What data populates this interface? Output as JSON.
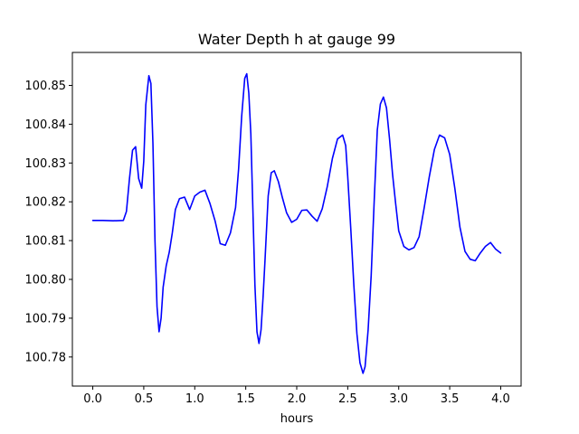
{
  "chart_data": {
    "type": "line",
    "title": "Water Depth h at gauge 99",
    "xlabel": "hours",
    "ylabel": "",
    "xlim": [
      -0.2,
      4.2
    ],
    "ylim": [
      100.7725,
      100.8585
    ],
    "xticks": [
      0.0,
      0.5,
      1.0,
      1.5,
      2.0,
      2.5,
      3.0,
      3.5,
      4.0
    ],
    "xtick_labels": [
      "0.0",
      "0.5",
      "1.0",
      "1.5",
      "2.0",
      "2.5",
      "3.0",
      "3.5",
      "4.0"
    ],
    "yticks": [
      100.78,
      100.79,
      100.8,
      100.81,
      100.82,
      100.83,
      100.84,
      100.85
    ],
    "ytick_labels": [
      "100.78",
      "100.79",
      "100.80",
      "100.81",
      "100.82",
      "100.83",
      "100.84",
      "100.85"
    ],
    "grid": false,
    "legend": false,
    "series": [
      {
        "color": "#0000ff",
        "x": [
          0.0,
          0.1,
          0.2,
          0.3,
          0.33,
          0.36,
          0.39,
          0.42,
          0.45,
          0.48,
          0.5,
          0.52,
          0.55,
          0.57,
          0.59,
          0.61,
          0.63,
          0.65,
          0.67,
          0.69,
          0.72,
          0.75,
          0.78,
          0.81,
          0.85,
          0.9,
          0.95,
          1.0,
          1.05,
          1.1,
          1.15,
          1.2,
          1.25,
          1.3,
          1.35,
          1.4,
          1.43,
          1.46,
          1.49,
          1.51,
          1.53,
          1.55,
          1.57,
          1.59,
          1.61,
          1.63,
          1.65,
          1.67,
          1.69,
          1.72,
          1.75,
          1.78,
          1.82,
          1.86,
          1.9,
          1.95,
          2.0,
          2.05,
          2.1,
          2.15,
          2.2,
          2.25,
          2.3,
          2.35,
          2.4,
          2.45,
          2.48,
          2.5,
          2.53,
          2.56,
          2.59,
          2.62,
          2.65,
          2.67,
          2.7,
          2.73,
          2.76,
          2.79,
          2.82,
          2.85,
          2.88,
          2.91,
          2.94,
          2.97,
          3.0,
          3.05,
          3.1,
          3.15,
          3.2,
          3.25,
          3.3,
          3.35,
          3.4,
          3.45,
          3.5,
          3.55,
          3.6,
          3.65,
          3.7,
          3.75,
          3.8,
          3.85,
          3.9,
          3.95,
          4.0
        ],
        "y": [
          100.8152,
          100.8152,
          100.8151,
          100.8152,
          100.8175,
          100.826,
          100.8333,
          100.8342,
          100.826,
          100.8235,
          100.8305,
          100.845,
          100.8525,
          100.8505,
          100.835,
          100.81,
          100.793,
          100.7865,
          100.79,
          100.798,
          100.8035,
          100.807,
          100.812,
          100.818,
          100.8208,
          100.8212,
          100.818,
          100.8215,
          100.8225,
          100.823,
          100.8195,
          100.815,
          100.8092,
          100.8088,
          100.812,
          100.8185,
          100.8285,
          100.842,
          100.8518,
          100.853,
          100.848,
          100.8375,
          100.818,
          100.7985,
          100.7865,
          100.7835,
          100.787,
          100.7955,
          100.8055,
          100.8215,
          100.8275,
          100.828,
          100.8252,
          100.821,
          100.8172,
          100.8147,
          100.8155,
          100.8178,
          100.8179,
          100.8163,
          100.815,
          100.8182,
          100.824,
          100.8312,
          100.8362,
          100.8372,
          100.8345,
          100.8265,
          100.813,
          100.7985,
          100.786,
          100.7785,
          100.7758,
          100.7775,
          100.787,
          100.801,
          100.8205,
          100.8385,
          100.8452,
          100.847,
          100.8442,
          100.8362,
          100.827,
          100.8195,
          100.8125,
          100.8085,
          100.8076,
          100.8082,
          100.811,
          100.8185,
          100.8265,
          100.8335,
          100.8372,
          100.8365,
          100.8322,
          100.8235,
          100.8135,
          100.8072,
          100.8052,
          100.8048,
          100.8068,
          100.8085,
          100.8095,
          100.8078,
          100.8068
        ]
      }
    ]
  }
}
